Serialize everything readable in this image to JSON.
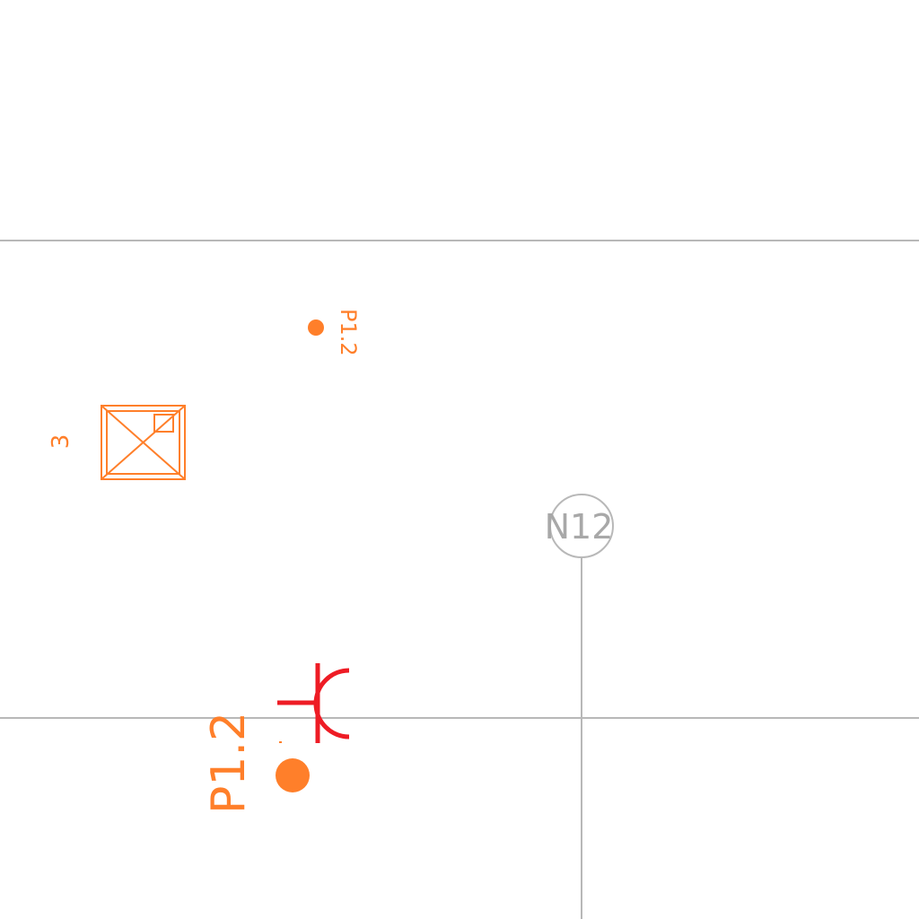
{
  "colors": {
    "background": "#ffffff",
    "grid_line": "#b8b8b8",
    "symbol_orange": "#ff7f2a",
    "symbol_red": "#ee1c25",
    "grid_label": "#a8a8a8"
  },
  "labels": {
    "point_small": "P1.2",
    "point_large": "P1.2",
    "box_number": "3",
    "grid_axis": "N12"
  }
}
